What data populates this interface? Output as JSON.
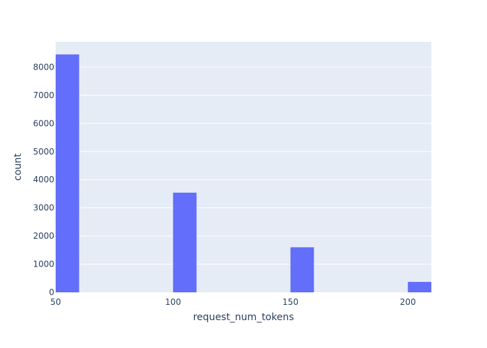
{
  "chart_data": {
    "type": "bar",
    "subtype": "histogram",
    "title": "",
    "xlabel": "request_num_tokens",
    "ylabel": "count",
    "xlim": [
      50,
      210
    ],
    "ylim": [
      0,
      8900
    ],
    "x_ticks": [
      50,
      100,
      150,
      200
    ],
    "y_ticks": [
      0,
      1000,
      2000,
      3000,
      4000,
      5000,
      6000,
      7000,
      8000
    ],
    "bin_width": 10,
    "bins": [
      {
        "x0": 50,
        "x1": 60,
        "value": 8450
      },
      {
        "x0": 100,
        "x1": 110,
        "value": 3540
      },
      {
        "x0": 150,
        "x1": 160,
        "value": 1600
      },
      {
        "x0": 200,
        "x1": 210,
        "value": 370
      }
    ],
    "grid": true,
    "legend": "none",
    "colors": {
      "plot_background": "#E5ECF6",
      "bar": "#636EFA",
      "grid": "#ffffff",
      "text": "#2a3f5f"
    }
  }
}
